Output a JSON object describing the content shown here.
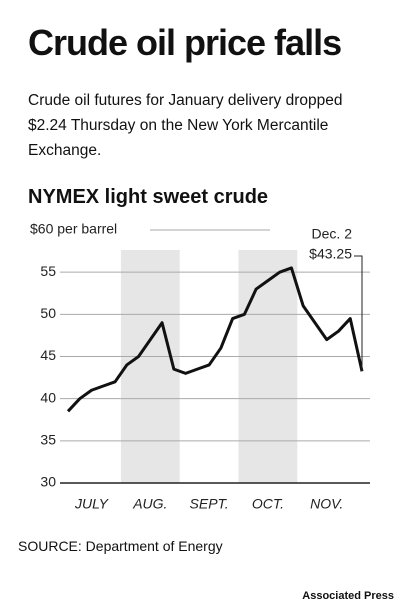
{
  "chart_data": {
    "type": "line",
    "title": "Crude oil price falls",
    "subtitle": "Crude oil futures for January delivery dropped $2.24 Thursday on the New York Mercantile Exchange.",
    "chart_title": "NYMEX light sweet crude",
    "categories": [
      null,
      null,
      "JULY",
      null,
      null,
      null,
      null,
      "AUG.",
      null,
      null,
      null,
      null,
      "SEPT.",
      null,
      null,
      null,
      null,
      "OCT.",
      null,
      null,
      null,
      null,
      "NOV.",
      null,
      null,
      null
    ],
    "series": [
      {
        "name": "NYMEX light sweet crude",
        "color": "#111111",
        "values": [
          38.5,
          40,
          41,
          41.5,
          42,
          44,
          45,
          47,
          49,
          43.5,
          43,
          43.5,
          44,
          46,
          49.5,
          50,
          53,
          54,
          55,
          55.5,
          51,
          49,
          47,
          48,
          49.5,
          43.25
        ]
      }
    ],
    "ylim": [
      30,
      60
    ],
    "yticks": [
      30,
      35,
      40,
      45,
      50,
      55,
      {
        "value": 60,
        "label": "$60 per barrel"
      }
    ],
    "grid": true,
    "annotations": [
      "Dec. 2",
      "$43.25"
    ],
    "source": "SOURCE: Department of Energy",
    "credit": "Associated Press"
  }
}
